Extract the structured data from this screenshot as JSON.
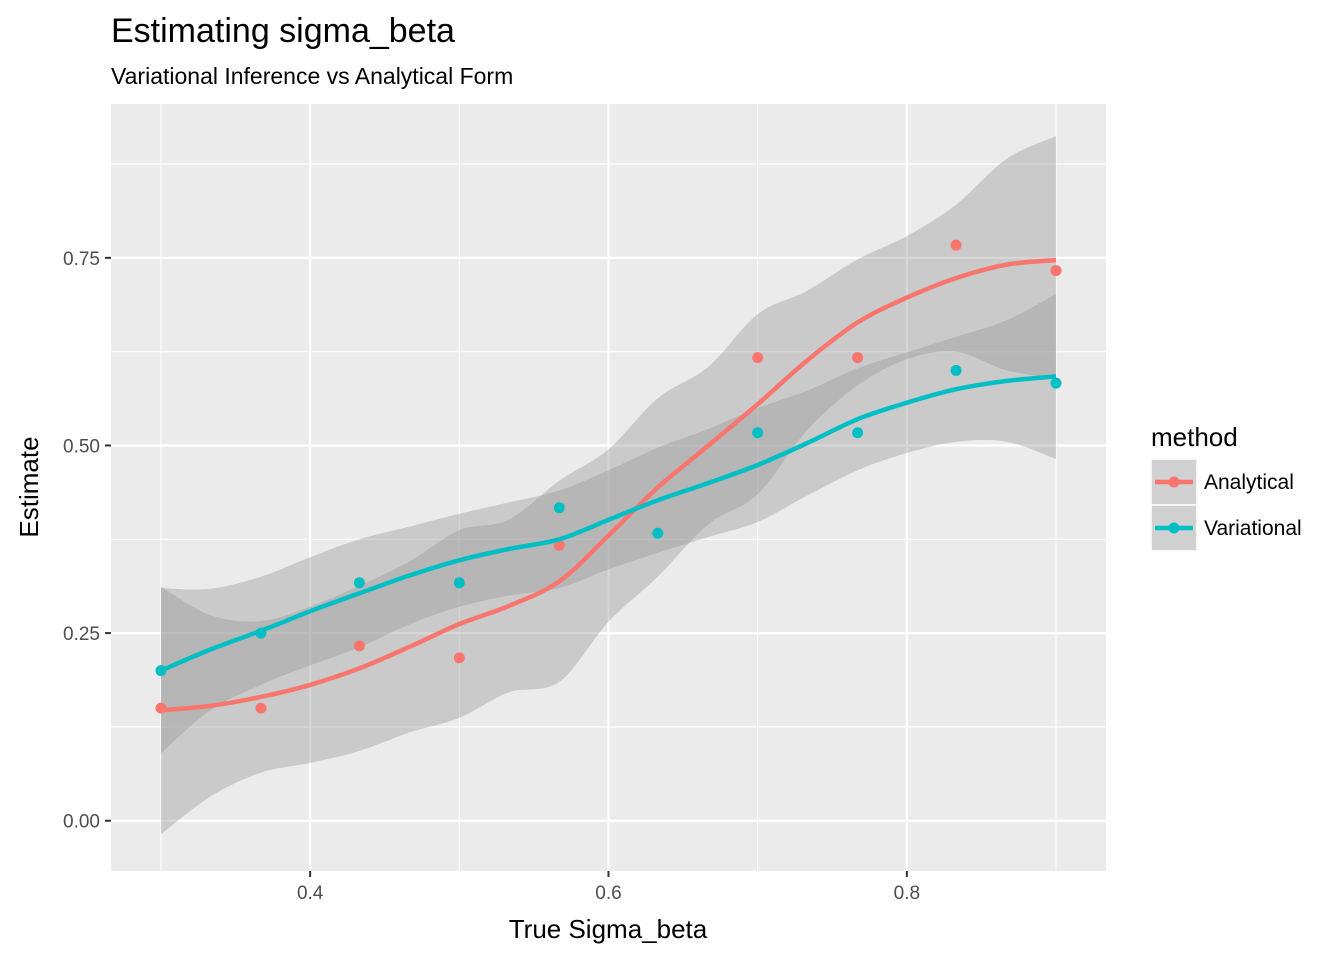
{
  "chart_data": {
    "type": "scatter",
    "title": "Estimating sigma_beta",
    "subtitle": "Variational Inference vs Analytical Form",
    "xlabel": "True Sigma_beta",
    "ylabel": "Estimate",
    "xlim": [
      0.2665,
      0.9335
    ],
    "ylim": [
      -0.067,
      0.955
    ],
    "x_ticks": [
      {
        "value": 0.4,
        "label": "0.4"
      },
      {
        "value": 0.6,
        "label": "0.6"
      },
      {
        "value": 0.8,
        "label": "0.8"
      }
    ],
    "y_ticks": [
      {
        "value": 0.0,
        "label": "0.00"
      },
      {
        "value": 0.25,
        "label": "0.25"
      },
      {
        "value": 0.5,
        "label": "0.50"
      },
      {
        "value": 0.75,
        "label": "0.75"
      }
    ],
    "grid": true,
    "legend": {
      "title": "method",
      "position": "right"
    },
    "series": [
      {
        "name": "Analytical",
        "color": "#F8766D",
        "points": [
          [
            0.3,
            0.15
          ],
          [
            0.367,
            0.15
          ],
          [
            0.433,
            0.233
          ],
          [
            0.5,
            0.217
          ],
          [
            0.567,
            0.367
          ],
          [
            0.7,
            0.617
          ],
          [
            0.767,
            0.617
          ],
          [
            0.833,
            0.767
          ],
          [
            0.9,
            0.733
          ]
        ],
        "smooth": [
          [
            0.3,
            0.147
          ],
          [
            0.333,
            0.153
          ],
          [
            0.367,
            0.165
          ],
          [
            0.4,
            0.181
          ],
          [
            0.433,
            0.203
          ],
          [
            0.467,
            0.232
          ],
          [
            0.5,
            0.262
          ],
          [
            0.533,
            0.286
          ],
          [
            0.567,
            0.319
          ],
          [
            0.6,
            0.38
          ],
          [
            0.633,
            0.444
          ],
          [
            0.667,
            0.5
          ],
          [
            0.7,
            0.555
          ],
          [
            0.733,
            0.613
          ],
          [
            0.767,
            0.664
          ],
          [
            0.8,
            0.697
          ],
          [
            0.833,
            0.723
          ],
          [
            0.867,
            0.741
          ],
          [
            0.9,
            0.747
          ]
        ],
        "ci_lower": [
          [
            0.3,
            -0.018
          ],
          [
            0.333,
            0.032
          ],
          [
            0.367,
            0.064
          ],
          [
            0.4,
            0.077
          ],
          [
            0.433,
            0.093
          ],
          [
            0.467,
            0.118
          ],
          [
            0.5,
            0.137
          ],
          [
            0.533,
            0.171
          ],
          [
            0.567,
            0.185
          ],
          [
            0.6,
            0.265
          ],
          [
            0.633,
            0.325
          ],
          [
            0.667,
            0.395
          ],
          [
            0.7,
            0.435
          ],
          [
            0.733,
            0.52
          ],
          [
            0.767,
            0.58
          ],
          [
            0.8,
            0.615
          ],
          [
            0.833,
            0.625
          ],
          [
            0.867,
            0.6
          ],
          [
            0.9,
            0.59
          ]
        ],
        "ci_upper": [
          [
            0.3,
            0.312
          ],
          [
            0.333,
            0.274
          ],
          [
            0.367,
            0.266
          ],
          [
            0.4,
            0.285
          ],
          [
            0.433,
            0.313
          ],
          [
            0.467,
            0.346
          ],
          [
            0.5,
            0.387
          ],
          [
            0.533,
            0.401
          ],
          [
            0.567,
            0.453
          ],
          [
            0.6,
            0.495
          ],
          [
            0.633,
            0.563
          ],
          [
            0.667,
            0.605
          ],
          [
            0.7,
            0.675
          ],
          [
            0.733,
            0.706
          ],
          [
            0.767,
            0.748
          ],
          [
            0.8,
            0.779
          ],
          [
            0.833,
            0.821
          ],
          [
            0.867,
            0.882
          ],
          [
            0.9,
            0.912
          ]
        ]
      },
      {
        "name": "Variational",
        "color": "#00BFC4",
        "points": [
          [
            0.3,
            0.2
          ],
          [
            0.367,
            0.25
          ],
          [
            0.433,
            0.317
          ],
          [
            0.5,
            0.317
          ],
          [
            0.567,
            0.417
          ],
          [
            0.633,
            0.383
          ],
          [
            0.7,
            0.517
          ],
          [
            0.767,
            0.517
          ],
          [
            0.833,
            0.6
          ],
          [
            0.9,
            0.583
          ]
        ],
        "smooth": [
          [
            0.3,
            0.2
          ],
          [
            0.333,
            0.228
          ],
          [
            0.367,
            0.253
          ],
          [
            0.4,
            0.279
          ],
          [
            0.433,
            0.303
          ],
          [
            0.467,
            0.327
          ],
          [
            0.5,
            0.347
          ],
          [
            0.533,
            0.362
          ],
          [
            0.567,
            0.375
          ],
          [
            0.6,
            0.401
          ],
          [
            0.633,
            0.427
          ],
          [
            0.667,
            0.45
          ],
          [
            0.7,
            0.474
          ],
          [
            0.733,
            0.503
          ],
          [
            0.767,
            0.535
          ],
          [
            0.8,
            0.557
          ],
          [
            0.833,
            0.575
          ],
          [
            0.867,
            0.586
          ],
          [
            0.9,
            0.592
          ]
        ],
        "ci_lower": [
          [
            0.3,
            0.09
          ],
          [
            0.333,
            0.147
          ],
          [
            0.367,
            0.181
          ],
          [
            0.4,
            0.207
          ],
          [
            0.433,
            0.231
          ],
          [
            0.467,
            0.262
          ],
          [
            0.5,
            0.285
          ],
          [
            0.533,
            0.3
          ],
          [
            0.567,
            0.31
          ],
          [
            0.6,
            0.335
          ],
          [
            0.633,
            0.357
          ],
          [
            0.667,
            0.378
          ],
          [
            0.7,
            0.398
          ],
          [
            0.733,
            0.433
          ],
          [
            0.767,
            0.467
          ],
          [
            0.8,
            0.49
          ],
          [
            0.833,
            0.505
          ],
          [
            0.867,
            0.505
          ],
          [
            0.9,
            0.482
          ]
        ],
        "ci_upper": [
          [
            0.3,
            0.31
          ],
          [
            0.333,
            0.309
          ],
          [
            0.367,
            0.325
          ],
          [
            0.4,
            0.351
          ],
          [
            0.433,
            0.375
          ],
          [
            0.467,
            0.392
          ],
          [
            0.5,
            0.409
          ],
          [
            0.533,
            0.424
          ],
          [
            0.567,
            0.44
          ],
          [
            0.6,
            0.467
          ],
          [
            0.633,
            0.497
          ],
          [
            0.667,
            0.522
          ],
          [
            0.7,
            0.55
          ],
          [
            0.733,
            0.573
          ],
          [
            0.767,
            0.603
          ],
          [
            0.8,
            0.624
          ],
          [
            0.833,
            0.645
          ],
          [
            0.867,
            0.667
          ],
          [
            0.9,
            0.702
          ]
        ]
      }
    ]
  }
}
